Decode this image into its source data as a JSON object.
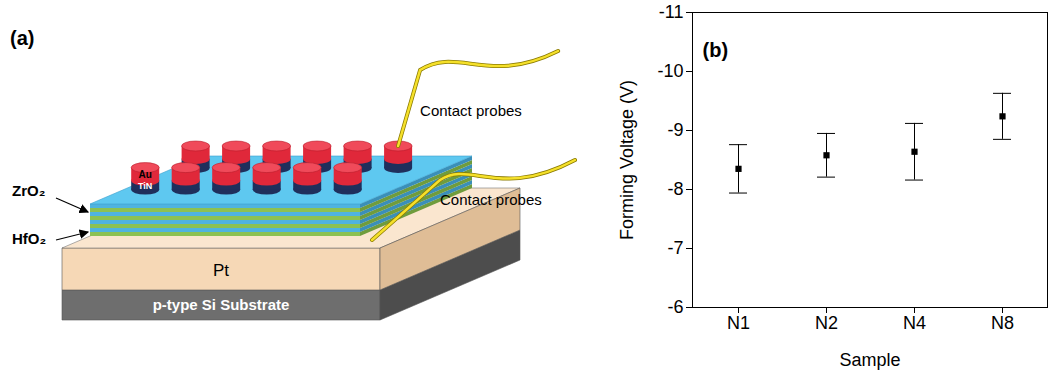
{
  "diagram": {
    "panel_label": "(a)",
    "layers": [
      {
        "label": "p-type Si Substrate"
      },
      {
        "label": "Pt"
      }
    ],
    "stack_labels": [
      "ZrO₂",
      "HfO₂"
    ],
    "electrode_labels": [
      "Au",
      "TiN"
    ],
    "probe_labels": [
      "Contact probes",
      "Contact probes"
    ]
  },
  "chart_data": {
    "type": "scatter",
    "annotations": [
      "(b)"
    ],
    "x_label": "Sample",
    "y_label": "Forming Voltage (V)",
    "categories": [
      "N1",
      "N2",
      "N4",
      "N8"
    ],
    "values": [
      -8.35,
      -8.58,
      -8.64,
      -9.24
    ],
    "errors": [
      0.41,
      0.37,
      0.48,
      0.39
    ],
    "color": "#000000",
    "marker": "square",
    "ylim": [
      -6,
      -11
    ],
    "yticks": [
      -11,
      -10,
      -9,
      -8,
      -7,
      -6
    ],
    "grid": false
  }
}
